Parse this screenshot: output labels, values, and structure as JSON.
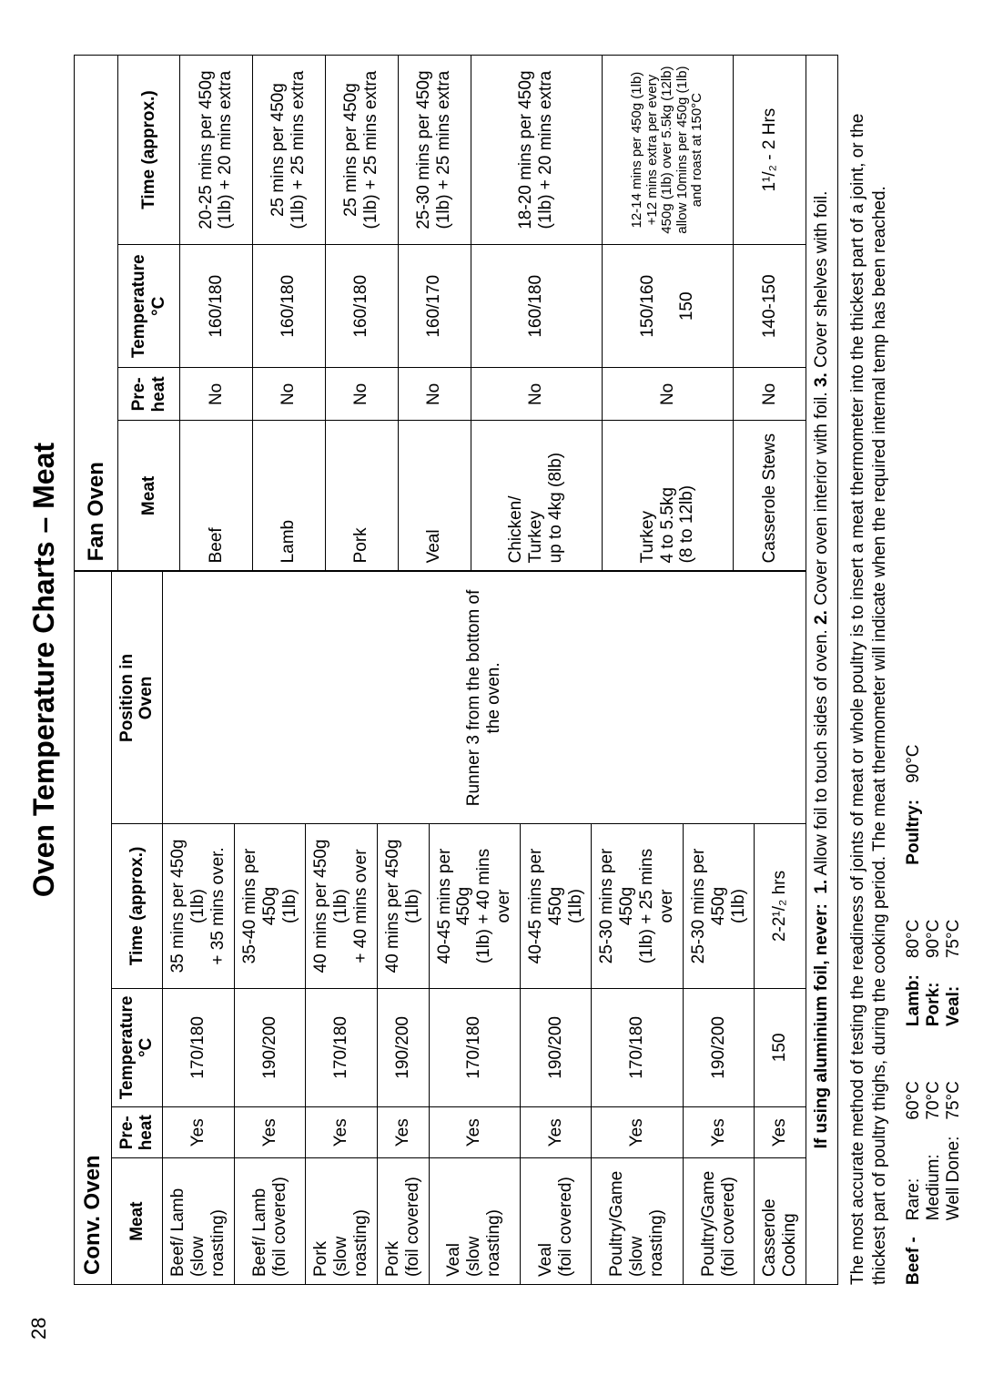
{
  "page_number": "28",
  "title": "Oven Temperature Charts – Meat",
  "conv": {
    "section": "Conv. Oven",
    "headers": [
      "Meat",
      "Pre-heat",
      "Temperature °C",
      "Time (approx.)",
      "Position in Oven"
    ],
    "position_note": "Runner 3 from the bottom of the oven.",
    "rows": [
      {
        "meat": "Beef/ Lamb\n(slow roasting)",
        "preheat": "Yes",
        "temp": "170/180",
        "time": "35 mins per 450g (1lb)\n+ 35 mins over."
      },
      {
        "meat": "Beef/ Lamb\n(foil covered)",
        "preheat": "Yes",
        "temp": "190/200",
        "time": "35-40 mins per 450g\n(1lb)"
      },
      {
        "meat": "Pork\n(slow roasting)",
        "preheat": "Yes",
        "temp": "170/180",
        "time": "40 mins per 450g (1lb)\n+ 40 mins over"
      },
      {
        "meat": "Pork\n(foil covered)",
        "preheat": "Yes",
        "temp": "190/200",
        "time": "40 mins per 450g (1lb)"
      },
      {
        "meat": "Veal\n(slow roasting)",
        "preheat": "Yes",
        "temp": "170/180",
        "time": "40-45 mins per 450g\n(1lb) + 40 mins over"
      },
      {
        "meat": "Veal\n(foil covered)",
        "preheat": "Yes",
        "temp": "190/200",
        "time": "40-45 mins per 450g\n(1lb)"
      },
      {
        "meat": "Poultry/Game\n(slow roasting)",
        "preheat": "Yes",
        "temp": "170/180",
        "time": "25-30 mins per 450g\n(1lb) + 25 mins over"
      },
      {
        "meat": "Poultry/Game\n(foil covered)",
        "preheat": "Yes",
        "temp": "190/200",
        "time": "25-30 mins per 450g\n(1lb)"
      },
      {
        "meat": "Casserole\nCooking",
        "preheat": "Yes",
        "temp": "150",
        "time": "2-2¹/₂ hrs"
      }
    ]
  },
  "fan": {
    "section": "Fan Oven",
    "headers": [
      "Meat",
      "Pre-heat",
      "Temperature °C",
      "Time (approx.)"
    ],
    "rows": [
      {
        "meat": "Beef",
        "preheat": "No",
        "temp": "160/180",
        "time": "20-25 mins per 450g\n(1lb) + 20 mins extra"
      },
      {
        "meat": "Lamb",
        "preheat": "No",
        "temp": "160/180",
        "time": "25 mins per 450g\n(1lb) + 25 mins extra"
      },
      {
        "meat": "Pork",
        "preheat": "No",
        "temp": "160/180",
        "time": "25 mins per 450g\n(1lb) + 25 mins extra"
      },
      {
        "meat": "Veal",
        "preheat": "No",
        "temp": "160/170",
        "time": "25-30 mins per 450g\n(1lb) + 25 mins extra"
      },
      {
        "meat": "Chicken/\nTurkey\nup to 4kg (8lb)",
        "preheat": "No",
        "temp": "160/180",
        "time": "18-20 mins per 450g\n(1lb) + 20 mins extra"
      },
      {
        "meat": "Turkey\n4 to 5.5kg\n(8 to 12lb)",
        "preheat": "No",
        "temp": "150/160\n\n150",
        "time": "12-14 mins per 450g (1lb)\n+12 mins extra per every\n450g (1lb) over 5.5kg (12lb)\nallow 10mins per 450g (1lb)\nand roast at 150°C",
        "small": true
      },
      {
        "meat": "Casserole Stews",
        "preheat": "No",
        "temp": "140-150",
        "time": "1¹/₂ - 2 Hrs"
      }
    ]
  },
  "foil_note": {
    "lead": "If using aluminium foil, never:",
    "p1": "1.",
    "t1": " Allow foil to touch sides of oven.   ",
    "p2": "2.",
    "t2": " Cover oven interior with foil.   ",
    "p3": "3.",
    "t3": " Cover shelves with foil."
  },
  "paragraph": "The most accurate method of testing the readiness of joints of meat or whole poultry is to insert a meat thermometer into the thickest part of a joint, or the thickest part of poultry thighs, during the cooking period. The meat thermometer will indicate when the required internal temp has been reached.",
  "temps": {
    "beef": {
      "label": "Beef -",
      "items": [
        {
          "name": "Rare:",
          "val": "60°C"
        },
        {
          "name": "Medium:",
          "val": "70°C"
        },
        {
          "name": "Well Done:",
          "val": "75°C"
        }
      ]
    },
    "others": [
      {
        "name": "Lamb:",
        "val": "80°C"
      },
      {
        "name": "Pork:",
        "val": "90°C"
      },
      {
        "name": "Veal:",
        "val": "75°C"
      }
    ],
    "poultry": {
      "name": "Poultry:",
      "val": "90°C"
    }
  }
}
